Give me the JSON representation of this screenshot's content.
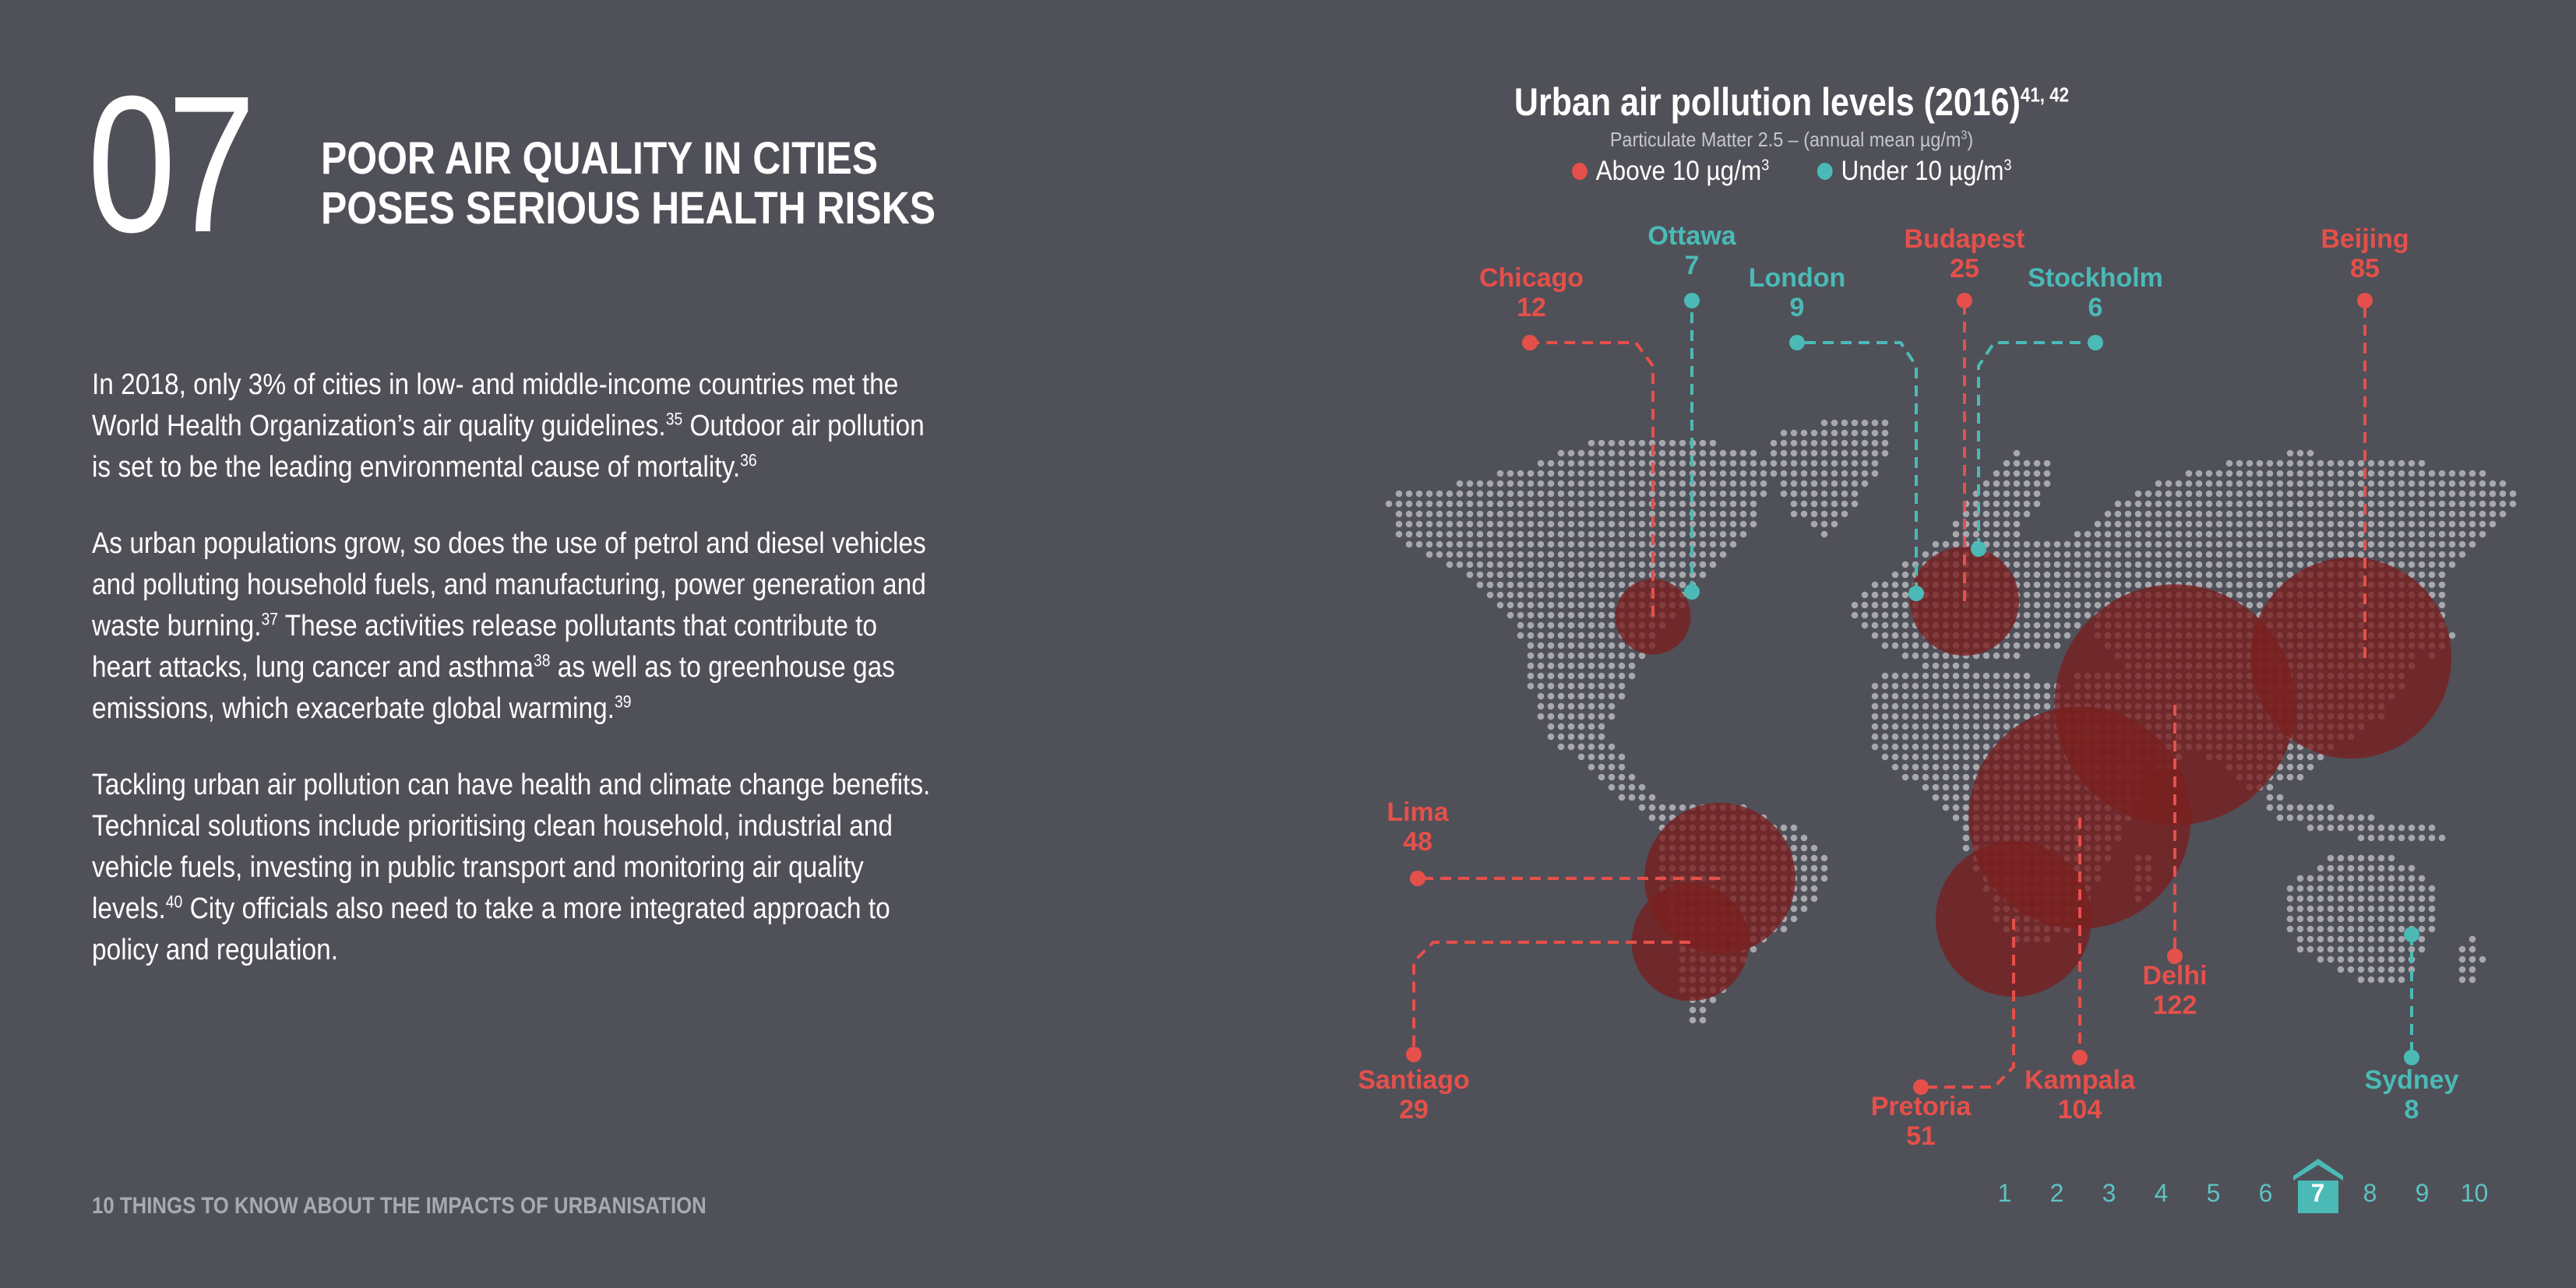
{
  "section": {
    "number": "07",
    "headline_lines": [
      "POOR AIR QUALITY IN CITIES",
      "POSES SERIOUS HEALTH RISKS"
    ]
  },
  "body": {
    "p1": {
      "t1": "In 2018, only 3% of cities in low- and middle-income countries met the World Health Organization’s air quality guidelines.",
      "s1": "35",
      "t2": " Outdoor air pollution is set to be the leading environmental cause of mortality.",
      "s2": "36"
    },
    "p2": {
      "t1": "As urban populations grow, so does the use of petrol and diesel vehicles and polluting household fuels, and manufacturing, power generation and waste burning.",
      "s1": "37",
      "t2": " These activities release pollutants that contribute to heart attacks, lung cancer and asthma",
      "s2": "38",
      "t3": " as well as to greenhouse gas emissions, which exacerbate global warming.",
      "s3": "39"
    },
    "p3": {
      "t1": "Tackling urban air pollution can have health and climate change benefits. Technical solutions include prioritising clean household, industrial and vehicle fuels, investing in public transport and monitoring air quality levels.",
      "s1": "40",
      "t2": " City officials also need to take a more integrated approach to policy and regulation."
    }
  },
  "footer": {
    "text": "10 THINGS TO KNOW ABOUT THE IMPACTS OF URBANISATION"
  },
  "chart": {
    "title": "Urban air pollution levels (2016)",
    "title_sup": "41, 42",
    "subtitle": "Particulate Matter 2.5 – (annual mean µg/m",
    "subtitle_sup": "3",
    "subtitle_end": ")",
    "legend": [
      {
        "label": "Above 10 µg/m",
        "sup": "3",
        "color": "#e5504a"
      },
      {
        "label": "Under 10 µg/m",
        "sup": "3",
        "color": "#4bbab6"
      }
    ]
  },
  "colors": {
    "above": "#e5504a",
    "under": "#4bbab6",
    "bubble": "#7a1f1f",
    "map_dot": "#a7a7ae"
  },
  "chart_data": {
    "type": "bubble-map",
    "unit": "µg/m³ (annual mean PM2.5)",
    "threshold": 10,
    "cities": [
      {
        "name": "Chicago",
        "value": 12,
        "category": "above"
      },
      {
        "name": "Ottawa",
        "value": 7,
        "category": "under"
      },
      {
        "name": "London",
        "value": 9,
        "category": "under"
      },
      {
        "name": "Budapest",
        "value": 25,
        "category": "above"
      },
      {
        "name": "Stockholm",
        "value": 6,
        "category": "under"
      },
      {
        "name": "Beijing",
        "value": 85,
        "category": "above"
      },
      {
        "name": "Lima",
        "value": 48,
        "category": "above"
      },
      {
        "name": "Santiago",
        "value": 29,
        "category": "above"
      },
      {
        "name": "Pretoria",
        "value": 51,
        "category": "above"
      },
      {
        "name": "Kampala",
        "value": 104,
        "category": "above"
      },
      {
        "name": "Delhi",
        "value": 122,
        "category": "above"
      },
      {
        "name": "Sydney",
        "value": 8,
        "category": "under"
      }
    ]
  },
  "pager": {
    "pages": [
      "1",
      "2",
      "3",
      "4",
      "5",
      "6",
      "7",
      "8",
      "9",
      "10"
    ],
    "current": "7"
  }
}
